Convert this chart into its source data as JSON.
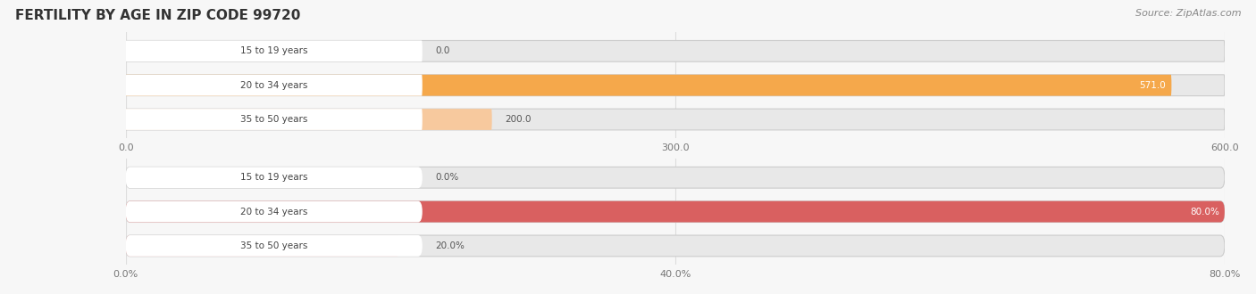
{
  "title": "FERTILITY BY AGE IN ZIP CODE 99720",
  "source": "Source: ZipAtlas.com",
  "top_chart": {
    "categories": [
      "15 to 19 years",
      "20 to 34 years",
      "35 to 50 years"
    ],
    "values": [
      0.0,
      571.0,
      200.0
    ],
    "xlim": [
      0,
      600.0
    ],
    "xticks": [
      0.0,
      300.0,
      600.0
    ],
    "xtick_labels": [
      "0.0",
      "300.0",
      "600.0"
    ],
    "bar_colors": [
      "#f5c19e",
      "#f5a84b",
      "#f7c99e"
    ],
    "label_colors": [
      "#555555",
      "#ffffff",
      "#555555"
    ],
    "bg_color": "#f7f7f7",
    "bar_bg_color": "#e8e8e8",
    "label_bg_color": "#ffffff"
  },
  "bottom_chart": {
    "categories": [
      "15 to 19 years",
      "20 to 34 years",
      "35 to 50 years"
    ],
    "values": [
      0.0,
      80.0,
      20.0
    ],
    "xlim": [
      0,
      80.0
    ],
    "xticks": [
      0.0,
      40.0,
      80.0
    ],
    "xtick_labels": [
      "0.0%",
      "40.0%",
      "80.0%"
    ],
    "bar_colors": [
      "#e8a8a8",
      "#d96060",
      "#e8a8a8"
    ],
    "label_colors": [
      "#555555",
      "#ffffff",
      "#555555"
    ],
    "bg_color": "#f7f7f7",
    "bar_bg_color": "#e8e8e8",
    "label_bg_color": "#ffffff"
  }
}
